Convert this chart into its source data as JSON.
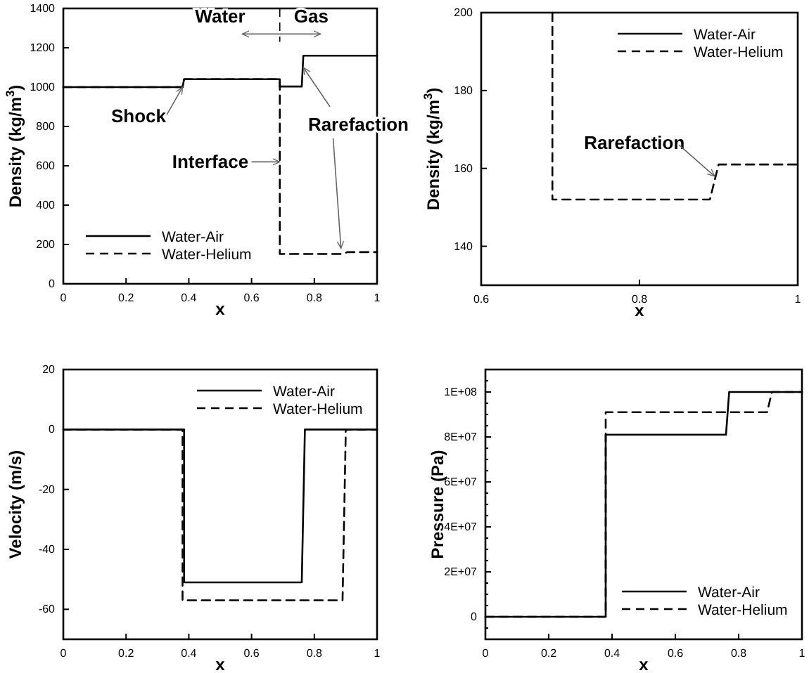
{
  "chart_data": [
    {
      "type": "line",
      "xlabel": "x",
      "ylabel": "Density (kg/m$^{3}$)",
      "xlim": [
        0,
        1
      ],
      "xticks": [
        0,
        0.2,
        0.4,
        0.6,
        0.8,
        1
      ],
      "ylim": [
        0,
        1400
      ],
      "yticks": [
        0,
        200,
        400,
        600,
        800,
        1000,
        1200,
        1400
      ],
      "grid": false,
      "legend": "bottom left",
      "series": [
        {
          "name": "Water-Air",
          "color": "#000000",
          "line_style": "solid",
          "x": [
            0,
            0.38,
            0.385,
            0.69,
            0.69,
            0.76,
            0.765,
            1
          ],
          "values": [
            1000,
            1000,
            1040,
            1040,
            1003,
            1003,
            1160,
            1160
          ]
        },
        {
          "name": "Water-Helium",
          "color": "#000000",
          "line_style": "dashed",
          "x": [
            0,
            0.38,
            0.385,
            0.69,
            0.69,
            0.89,
            0.905,
            1
          ],
          "values": [
            1000,
            1000,
            1040,
            1040,
            152,
            152,
            161,
            161
          ]
        }
      ],
      "annotations": [
        "Water",
        "Gas",
        {
          "text": "Shock",
          "x": 0.38,
          "y": 1000
        },
        {
          "text": "Interface",
          "x": 0.69,
          "y": 620
        },
        {
          "text": "Rarefaction",
          "x": 0.765,
          "y": 1100
        }
      ]
    },
    {
      "type": "line",
      "xlabel": "x",
      "ylabel": "Density (kg/m$^{3}$)",
      "xlim": [
        0.6,
        1
      ],
      "xticks": [
        0.6,
        0.8,
        1
      ],
      "ylim": [
        130,
        200
      ],
      "yticks": [
        140,
        160,
        180,
        200
      ],
      "grid": false,
      "legend": "top right",
      "series": [
        {
          "name": "Water-Air",
          "color": "#000000",
          "line_style": "solid"
        },
        {
          "name": "Water-Helium",
          "color": "#000000",
          "line_style": "dashed",
          "x": [
            0.69,
            0.69,
            0.889,
            0.9,
            1
          ],
          "values": [
            200,
            152,
            152,
            161,
            161
          ]
        }
      ],
      "annotations": [
        {
          "text": "Rarefaction",
          "x": 0.895,
          "y": 158
        }
      ]
    },
    {
      "type": "line",
      "xlabel": "x",
      "ylabel": "Velocity (m/s)",
      "xlim": [
        0,
        1
      ],
      "xticks": [
        0,
        0.2,
        0.4,
        0.6,
        0.8,
        1
      ],
      "ylim": [
        -70,
        20
      ],
      "yticks": [
        -60,
        -40,
        -20,
        0,
        20
      ],
      "grid": false,
      "legend": "top right",
      "series": [
        {
          "name": "Water-Air",
          "color": "#000000",
          "line_style": "solid",
          "x": [
            0,
            0.385,
            0.385,
            0.76,
            0.77,
            1
          ],
          "values": [
            0,
            0,
            -51,
            -51,
            0,
            0
          ]
        },
        {
          "name": "Water-Helium",
          "color": "#000000",
          "line_style": "dashed",
          "x": [
            0,
            0.38,
            0.38,
            0.89,
            0.9,
            0.9,
            1
          ],
          "values": [
            0,
            0,
            -57,
            -57,
            -2,
            0,
            0
          ]
        }
      ]
    },
    {
      "type": "line",
      "xlabel": "x",
      "ylabel": "Pressure (Pa)",
      "xlim": [
        0,
        1
      ],
      "xticks": [
        0,
        0.2,
        0.4,
        0.6,
        0.8,
        1
      ],
      "ylim": [
        -10000000,
        110000000
      ],
      "yticks": [
        {
          "value": -5000000,
          "label": null
        },
        0,
        {
          "value": 5000000,
          "label": null
        },
        {
          "value": 10000000,
          "label": null
        },
        {
          "value": 15000000,
          "label": null
        },
        {
          "value": 20000000,
          "label": "2E+07"
        },
        {
          "value": 25000000,
          "label": null
        },
        {
          "value": 30000000,
          "label": null
        },
        {
          "value": 35000000,
          "label": null
        },
        {
          "value": 40000000,
          "label": "4E+07"
        },
        {
          "value": 45000000,
          "label": null
        },
        {
          "value": 50000000,
          "label": null
        },
        {
          "value": 55000000,
          "label": null
        },
        {
          "value": 60000000,
          "label": "6E+07"
        },
        {
          "value": 65000000,
          "label": null
        },
        {
          "value": 70000000,
          "label": null
        },
        {
          "value": 75000000,
          "label": null
        },
        {
          "value": 80000000,
          "label": "8E+07"
        },
        {
          "value": 85000000,
          "label": null
        },
        {
          "value": 90000000,
          "label": null
        },
        {
          "value": 95000000,
          "label": null
        },
        {
          "value": 100000000,
          "label": "1E+08"
        },
        {
          "value": 105000000,
          "label": null
        }
      ],
      "grid": false,
      "legend": "bottom right",
      "series": [
        {
          "name": "Water-Air",
          "color": "#000000",
          "line_style": "solid",
          "x": [
            0,
            0.38,
            0.38,
            0.76,
            0.77,
            1
          ],
          "values": [
            0,
            0,
            81000000,
            81000000,
            100000000,
            100000000
          ]
        },
        {
          "name": "Water-Helium",
          "color": "#000000",
          "line_style": "dashed",
          "x": [
            0,
            0.38,
            0.38,
            0.89,
            0.905,
            1
          ],
          "values": [
            0,
            0,
            91000000,
            91000000,
            100000000,
            100000000
          ]
        }
      ]
    }
  ]
}
